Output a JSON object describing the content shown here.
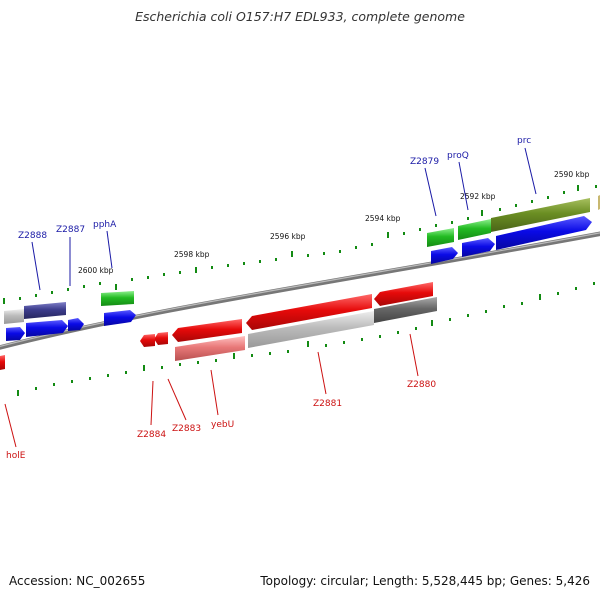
{
  "title": "Escherichia coli O157:H7 EDL933, complete genome",
  "footer": {
    "accession": "Accession: NC_002655",
    "topology": "Topology: circular; Length: 5,528,445 bp; Genes: 5,426"
  },
  "colors": {
    "backbone": "#888888",
    "tick": "#138b13",
    "forward_label": "#1a1aa6",
    "reverse_label": "#cc1111",
    "feature_blue": "#0a0ae6",
    "feature_red": "#e60a0a",
    "feature_green": "#22bb22",
    "feature_olive": "#6b8e23",
    "feature_navy": "#3c3c8c",
    "feature_gray": "#666666",
    "feature_light_gray": "#bbbbbb",
    "feature_salmon": "#e87878"
  },
  "scale_labels": [
    "2590 kbp",
    "2592 kbp",
    "2594 kbp",
    "2596 kbp",
    "2598 kbp",
    "2600 kbp"
  ],
  "forward_genes": [
    "prc",
    "proQ",
    "Z2879",
    "pphA",
    "Z2887",
    "Z2888"
  ],
  "reverse_genes": [
    "Z2880",
    "Z2881",
    "yebU",
    "Z2883",
    "Z2884",
    "holE"
  ]
}
